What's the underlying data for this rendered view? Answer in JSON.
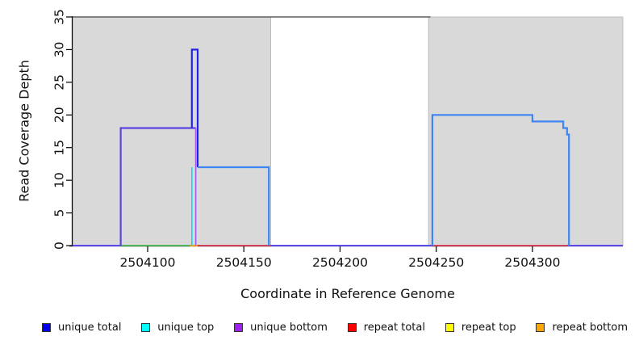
{
  "chart_data": {
    "type": "line",
    "subtype": "step-coverage",
    "title": "",
    "xlabel": "Coordinate in Reference Genome",
    "ylabel": "Read Coverage Depth",
    "x_range": [
      2504061,
      2504347
    ],
    "y_range": [
      0,
      35
    ],
    "x_ticks": [
      2504100,
      2504150,
      2504200,
      2504250,
      2504300
    ],
    "y_ticks": [
      0,
      5,
      10,
      15,
      20,
      25,
      30,
      35
    ],
    "grid": false,
    "legend_position": "bottom",
    "shaded_regions": [
      {
        "name": "left-gray-region",
        "x0": 2504061,
        "x1": 2504164,
        "fill": "#d9d9d9",
        "stroke": "#b3b3b3"
      },
      {
        "name": "right-gray-region",
        "x0": 2504246,
        "x1": 2504347,
        "fill": "#d9d9d9",
        "stroke": "#b3b3b3"
      }
    ],
    "series": [
      {
        "name": "max-depth-cap-line",
        "color": "#5f5f5f",
        "width": 1.6,
        "points": [
          [
            2504061,
            35
          ],
          [
            2504247,
            35
          ]
        ]
      },
      {
        "name": "baseline-unique-left",
        "color": "#5b49e8",
        "width": 2,
        "points": [
          [
            2504061,
            0
          ],
          [
            2504086,
            0
          ]
        ]
      },
      {
        "name": "baseline-green",
        "color": "#3fbf4e",
        "width": 1.6,
        "points": [
          [
            2504086,
            0
          ],
          [
            2504122,
            0
          ]
        ]
      },
      {
        "name": "baseline-orange",
        "color": "#ff9d00",
        "width": 2,
        "points": [
          [
            2504122,
            0
          ],
          [
            2504126,
            0
          ]
        ]
      },
      {
        "name": "baseline-red-left",
        "color": "#e8294a",
        "width": 1.6,
        "points": [
          [
            2504126,
            0
          ],
          [
            2504164,
            0
          ]
        ]
      },
      {
        "name": "baseline-unique-mid",
        "color": "#5b49e8",
        "width": 2,
        "points": [
          [
            2504164,
            0
          ],
          [
            2504248,
            0
          ]
        ]
      },
      {
        "name": "baseline-red-right",
        "color": "#e8294a",
        "width": 1.6,
        "points": [
          [
            2504248,
            0
          ],
          [
            2504318,
            0
          ]
        ]
      },
      {
        "name": "baseline-unique-right",
        "color": "#5b49e8",
        "width": 2,
        "points": [
          [
            2504318,
            0
          ],
          [
            2504347,
            0
          ]
        ]
      },
      {
        "name": "unique-top-rise",
        "color": "#00e0ee",
        "width": 1.6,
        "points": [
          [
            2504123,
            0
          ],
          [
            2504123,
            12
          ]
        ]
      },
      {
        "name": "unique-bottom-step",
        "color": "#5b45e0",
        "width": 2.2,
        "points": [
          [
            2504086,
            0
          ],
          [
            2504086,
            18
          ],
          [
            2504125,
            18
          ]
        ]
      },
      {
        "name": "unique-bottom-drop",
        "color": "#a65ce8",
        "width": 1.6,
        "points": [
          [
            2504125,
            18
          ],
          [
            2504125,
            0
          ]
        ]
      },
      {
        "name": "unique-total-spike",
        "color": "#2323e8",
        "width": 2.2,
        "points": [
          [
            2504123,
            18
          ],
          [
            2504123,
            30
          ],
          [
            2504126,
            30
          ],
          [
            2504126,
            12
          ]
        ]
      },
      {
        "name": "unique-total-mid",
        "color": "#3d85f2",
        "width": 2.2,
        "points": [
          [
            2504126,
            12
          ],
          [
            2504163,
            12
          ],
          [
            2504163,
            0
          ]
        ]
      },
      {
        "name": "unique-total-right",
        "color": "#3d85f2",
        "width": 2.2,
        "points": [
          [
            2504248,
            0
          ],
          [
            2504248,
            20
          ],
          [
            2504300,
            20
          ],
          [
            2504300,
            19
          ],
          [
            2504316,
            19
          ],
          [
            2504316,
            18
          ],
          [
            2504318,
            18
          ],
          [
            2504318,
            17
          ],
          [
            2504319,
            17
          ],
          [
            2504319,
            0
          ]
        ]
      }
    ],
    "legend": [
      {
        "label": "unique total",
        "color": "#0000ee"
      },
      {
        "label": "unique top",
        "color": "#00ffff"
      },
      {
        "label": "unique bottom",
        "color": "#a020f0"
      },
      {
        "label": "repeat total",
        "color": "#ff0000"
      },
      {
        "label": "repeat top",
        "color": "#ffff00"
      },
      {
        "label": "repeat bottom",
        "color": "#ffa500"
      }
    ]
  }
}
